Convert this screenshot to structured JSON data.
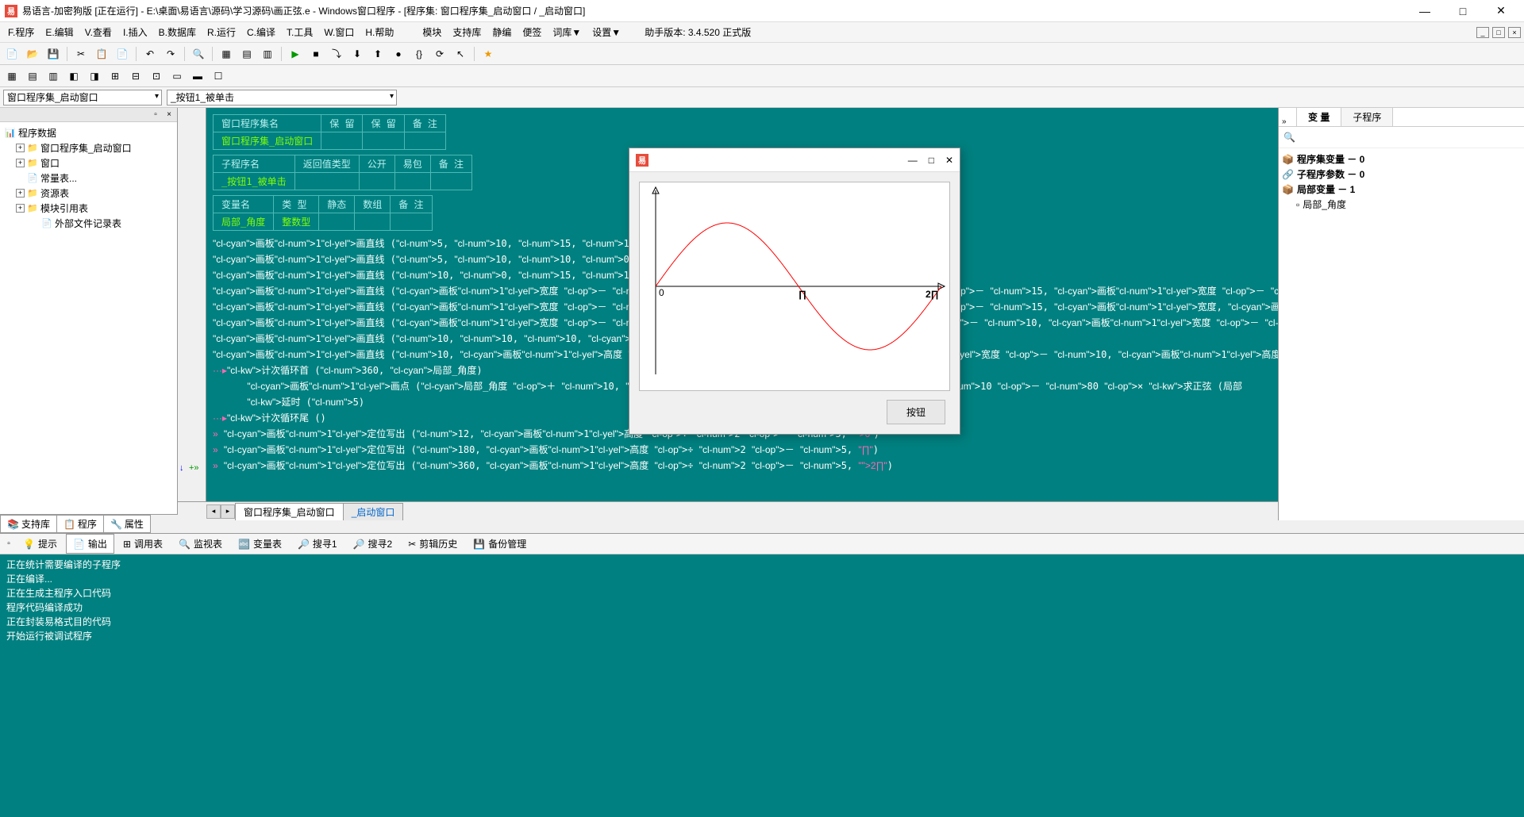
{
  "window": {
    "title": "易语言-加密狗版 [正在运行] - E:\\桌面\\易语言\\源码\\学习源码\\画正弦.e - Windows窗口程序 - [程序集: 窗口程序集_启动窗口 / _启动窗口]",
    "icon_letter": "易"
  },
  "menu": {
    "items": [
      "F.程序",
      "E.编辑",
      "V.查看",
      "I.插入",
      "B.数据库",
      "R.运行",
      "C.编译",
      "T.工具",
      "W.窗口",
      "H.帮助"
    ],
    "extra": [
      "模块",
      "支持库",
      "静编",
      "便签",
      "词库▼",
      "设置▼"
    ],
    "version": "助手版本: 3.4.520 正式版"
  },
  "combos": {
    "left": "窗口程序集_启动窗口",
    "right": "_按钮1_被单击"
  },
  "tree": {
    "root": "程序数据",
    "items": [
      {
        "exp": "+",
        "icon": "📁",
        "label": "窗口程序集_启动窗口",
        "ind": 1
      },
      {
        "exp": "+",
        "icon": "📁",
        "label": "窗口",
        "ind": 1
      },
      {
        "exp": "",
        "icon": "📄",
        "label": "常量表...",
        "ind": 1
      },
      {
        "exp": "+",
        "icon": "📁",
        "label": "资源表",
        "ind": 1
      },
      {
        "exp": "+",
        "icon": "📁",
        "label": "模块引用表",
        "ind": 1
      },
      {
        "exp": "",
        "icon": "📄",
        "label": "外部文件记录表",
        "ind": 2
      }
    ]
  },
  "left_tabs": [
    "支持库",
    "程序",
    "属性"
  ],
  "code_tables": {
    "t1": {
      "headers": [
        "窗口程序集名",
        "保 留",
        "保 留",
        "备 注"
      ],
      "row": [
        "窗口程序集_启动窗口",
        "",
        "",
        ""
      ]
    },
    "t2": {
      "headers": [
        "子程序名",
        "返回值类型",
        "公开",
        "易包",
        "备 注"
      ],
      "row": [
        "_按钮1_被单击",
        "",
        "",
        "",
        ""
      ]
    },
    "t3": {
      "headers": [
        "变量名",
        "类 型",
        "静态",
        "数组",
        "备 注"
      ],
      "row": [
        "局部_角度",
        "整数型",
        "",
        "",
        ""
      ]
    }
  },
  "code_lines": [
    "画板1.画直线 (5, 10, 15, 10)",
    "画板1.画直线 (5, 10, 10, 0)",
    "画板1.画直线 (10, 0, 15, 10)",
    "画板1.画直线 (画板1.宽度 － 10, 画板1.高度 ÷ 2 － 15, 画板1.宽度 － 10, 画",
    "画板1.画直线 (画板1.宽度 － 10, 画板1.高度 ÷ 2 － 15, 画板1.宽度, 画板1.高",
    "画板1.画直线 (画板1.宽度 － 2, 画板1.高度 ÷ 2 － 10, 画板1.宽度 － 10, 画",
    "画板1.画直线 (10, 10, 10, 画板1.高度 － 10)",
    "画板1.画直线 (10, 画板1.高度 ÷ 2 － 10, 画板1.宽度 － 10, 画板1.高度 ÷ 2",
    "计次循环首 (360, 局部_角度)",
    "    画板1.画点 (局部_角度 ＋ 10, 画板1.高度 ÷ 2 － 10 － 80 × 求正弦 (局部",
    "    延时 (5)",
    "计次循环尾 ()",
    "",
    "画板1.定位写出 (12, 画板1.高度 ÷ 2 － 5, \"0\")",
    "画板1.定位写出 (180, 画板1.高度 ÷ 2 － 5, \"∏\")",
    "画板1.定位写出 (360, 画板1.高度 ÷ 2 － 5, \"2∏\")"
  ],
  "code_tabs": {
    "active": "窗口程序集_启动窗口",
    "inactive": "_启动窗口"
  },
  "right_panel": {
    "tabs": [
      "变 量",
      "子程序"
    ],
    "search_placeholder": "🔍",
    "nodes": [
      {
        "label": "程序集变量 － 0",
        "bold": true,
        "icon": "📦"
      },
      {
        "label": "子程序参数 － 0",
        "bold": true,
        "icon": "🔗"
      },
      {
        "label": "局部变量 － 1",
        "bold": true,
        "icon": "📦"
      },
      {
        "label": "局部_角度",
        "bold": false,
        "icon": "▫",
        "ind": true
      }
    ]
  },
  "bottom": {
    "tabs": [
      "提示",
      "输出",
      "调用表",
      "监视表",
      "变量表",
      "搜寻1",
      "搜寻2",
      "剪辑历史",
      "备份管理"
    ],
    "active_idx": 1,
    "lines": [
      "正在统计需要编译的子程序",
      "正在编译...",
      "正在生成主程序入口代码",
      "程序代码编译成功",
      "正在封装易格式目的代码",
      "开始运行被调试程序"
    ]
  },
  "float": {
    "icon_letter": "易",
    "button": "按钮",
    "chart": {
      "type": "line",
      "xaxis_labels": [
        "0",
        "∏",
        "2∏"
      ],
      "xlim": [
        0,
        360
      ],
      "ylim": [
        -1,
        1
      ],
      "amplitude": 80,
      "line_color": "#ff0000",
      "axis_color": "#000000",
      "background": "#ffffff"
    }
  },
  "colors": {
    "teal": "#008080",
    "code_cyan": "#7fffd4",
    "code_green": "#7fff00",
    "code_yellow": "#ffff00"
  }
}
